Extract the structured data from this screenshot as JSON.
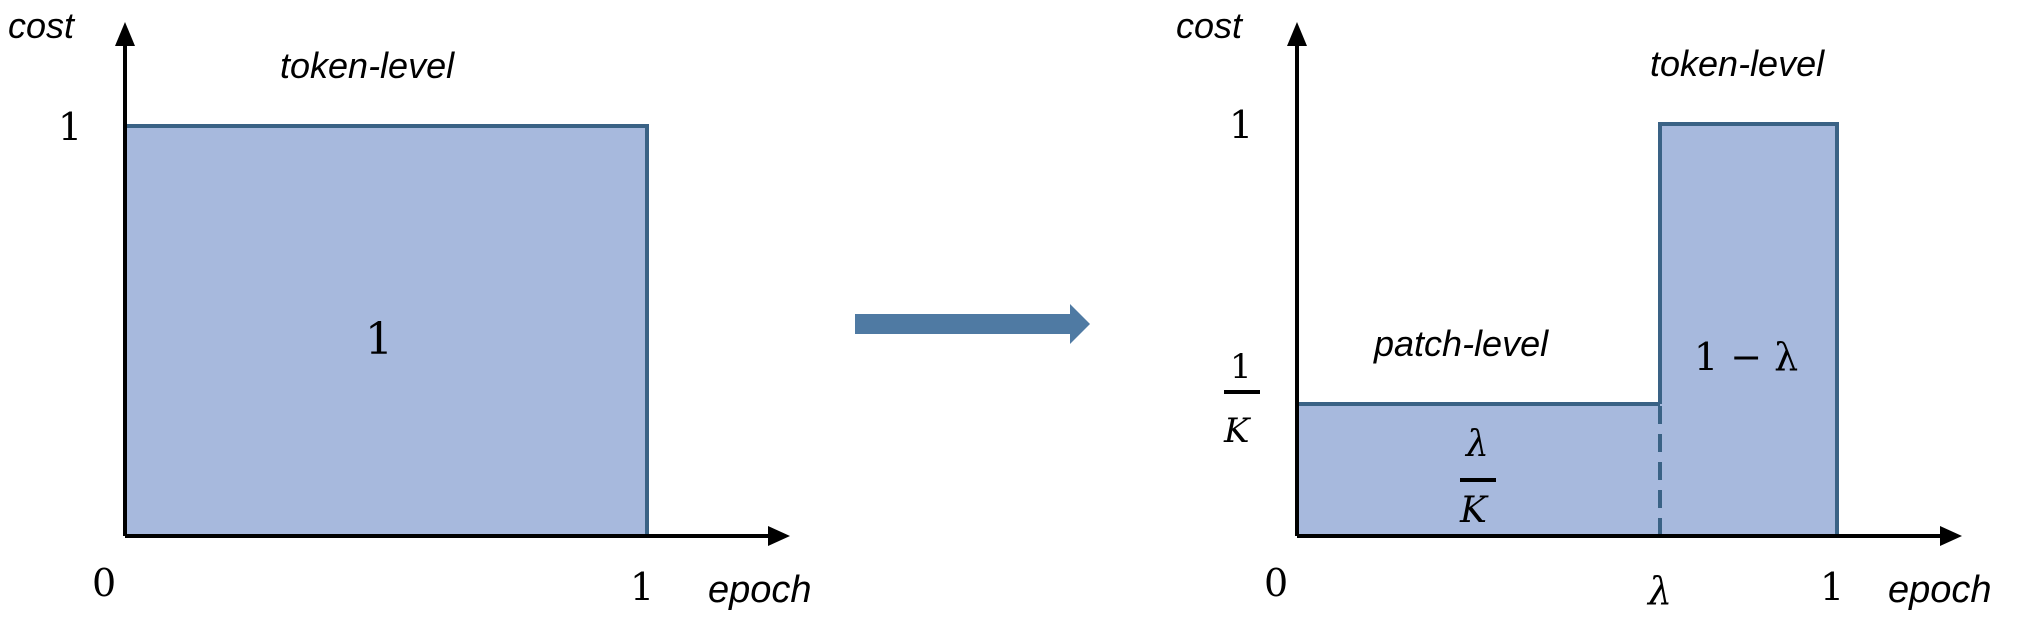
{
  "colors": {
    "fill": "#a7b9dd",
    "edge": "#3a6285",
    "arrow": "#4f7aa3",
    "axis": "#000000"
  },
  "left_diagram": {
    "y_axis_label": "cost",
    "x_axis_label": "epoch",
    "top_label": "token-level",
    "y_tick_1": "1",
    "x_tick_0": "0",
    "x_tick_1": "1",
    "area_label": "1"
  },
  "transition_arrow": {
    "icon": "right-arrow-icon"
  },
  "right_diagram": {
    "y_axis_label": "cost",
    "x_axis_label": "epoch",
    "top_label": "token-level",
    "patch_label": "patch-level",
    "y_tick_1": "1",
    "y_tick_frac_num": "1",
    "y_tick_frac_den": "K",
    "x_tick_0": "0",
    "x_tick_lambda": "λ",
    "x_tick_1": "1",
    "patch_area_num": "λ",
    "patch_area_den": "K",
    "token_area_label": "1 − λ"
  }
}
